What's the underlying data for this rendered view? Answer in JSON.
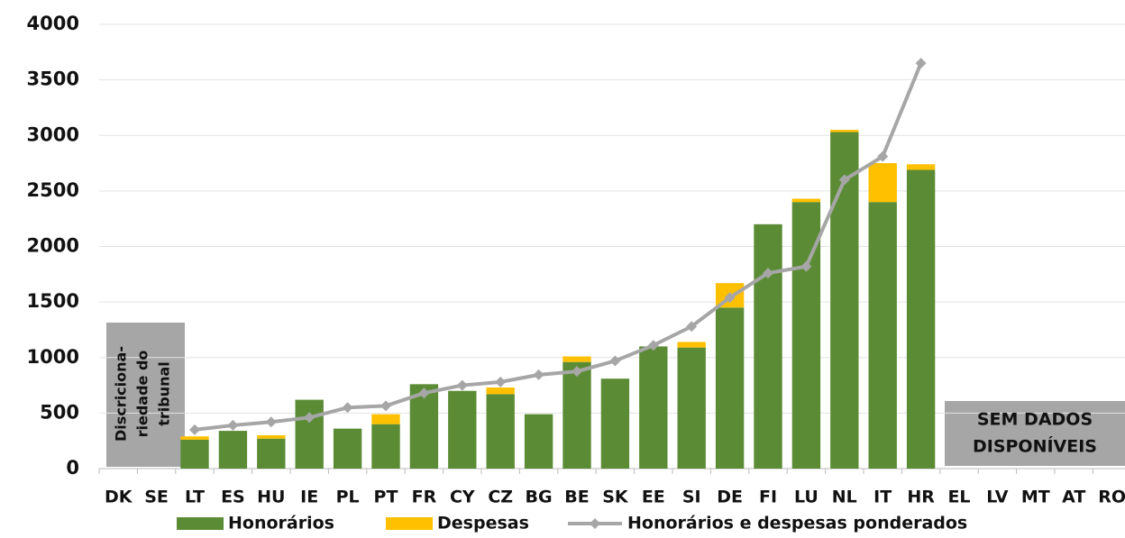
{
  "chart_data": {
    "type": "bar",
    "categories": [
      "DK",
      "SE",
      "LT",
      "ES",
      "HU",
      "IE",
      "PL",
      "PT",
      "FR",
      "CY",
      "CZ",
      "BG",
      "BE",
      "SK",
      "EE",
      "SI",
      "DE",
      "FI",
      "LU",
      "NL",
      "IT",
      "HR",
      "EL",
      "LV",
      "MT",
      "AT",
      "RO"
    ],
    "series": [
      {
        "name": "Honorários",
        "color": "#5b8c35",
        "values": [
          null,
          null,
          260,
          340,
          270,
          620,
          360,
          400,
          760,
          700,
          670,
          490,
          960,
          810,
          1100,
          1090,
          1450,
          2200,
          2400,
          3030,
          2400,
          2690,
          null,
          null,
          null,
          null,
          null
        ]
      },
      {
        "name": "Despesas",
        "color": "#ffc000",
        "values": [
          null,
          null,
          30,
          0,
          30,
          0,
          0,
          90,
          0,
          0,
          60,
          0,
          50,
          0,
          0,
          50,
          220,
          0,
          30,
          20,
          350,
          50,
          null,
          null,
          null,
          null,
          null
        ]
      },
      {
        "name": "Honorários e despesas ponderados",
        "color": "#a6a6a6",
        "type": "line",
        "values": [
          null,
          null,
          350,
          390,
          420,
          460,
          550,
          565,
          680,
          750,
          780,
          845,
          875,
          970,
          1110,
          1280,
          1540,
          1760,
          1820,
          2600,
          2810,
          3650,
          null,
          null,
          null,
          null,
          null
        ]
      }
    ],
    "ylim": [
      0,
      4000
    ],
    "yticks": [
      0,
      500,
      1000,
      1500,
      2000,
      2500,
      3000,
      3500,
      4000
    ],
    "grid": true,
    "annotations": {
      "left_box": [
        "Discriciona-",
        "riedade do",
        "tribunal"
      ],
      "right_box": [
        "SEM DADOS",
        "DISPONÍVEIS"
      ]
    }
  }
}
